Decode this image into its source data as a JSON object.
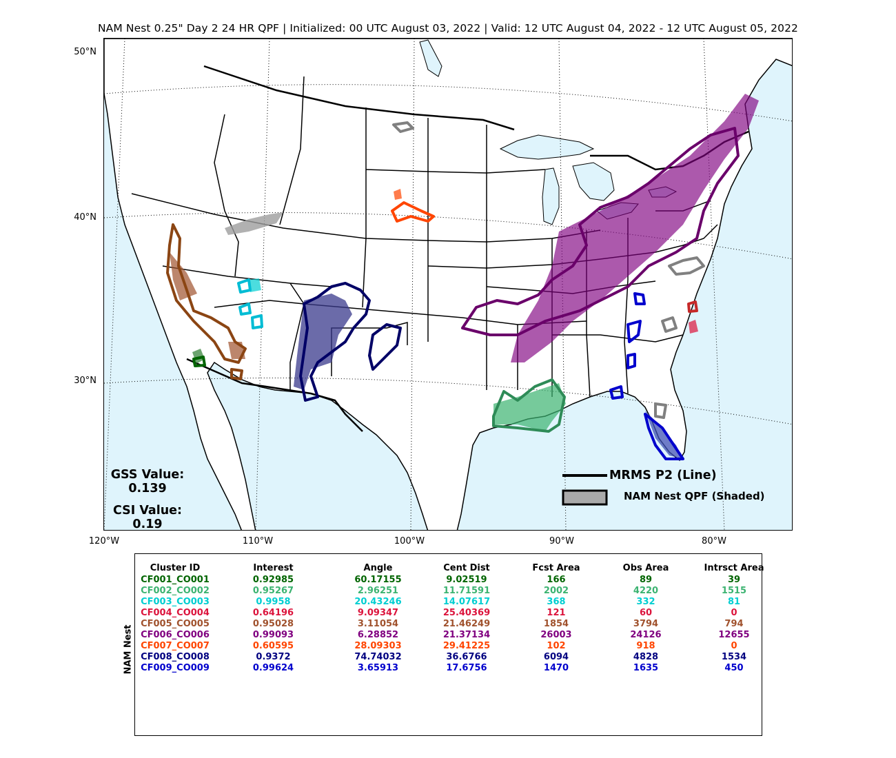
{
  "title": "NAM Nest 0.25\" Day 2 24 HR QPF | Initialized: 00 UTC August 03, 2022 | Valid: 12 UTC August 04, 2022 - 12 UTC August 05, 2022",
  "map": {
    "lat_labels": [
      "50°N",
      "40°N",
      "30°N"
    ],
    "lon_labels": [
      "120°W",
      "110°W",
      "100°W",
      "90°W",
      "80°W"
    ],
    "gss": {
      "label": "GSS Value:",
      "value": "0.139"
    },
    "csi": {
      "label": "CSI Value:",
      "value": "0.19"
    },
    "legend": {
      "line_label": "MRMS P2 (Line)",
      "shaded_label": "NAM Nest QPF (Shaded)"
    },
    "colors": {
      "ocean": "#dff4fc",
      "land": "#ffffff",
      "unmatched": "#808080"
    }
  },
  "table": {
    "row_label": "NAM Nest",
    "headers": [
      "Cluster ID",
      "Interest",
      "Angle",
      "Cent Dist",
      "Fcst Area",
      "Obs Area",
      "Intrsct Area"
    ],
    "rows": [
      {
        "color": "#006400",
        "cells": [
          "CF001_CO001",
          "0.92985",
          "60.17155",
          "9.02519",
          "166",
          "89",
          "39"
        ]
      },
      {
        "color": "#3cb371",
        "cells": [
          "CF002_CO002",
          "0.95267",
          "2.96251",
          "11.71591",
          "2002",
          "4220",
          "1515"
        ]
      },
      {
        "color": "#00ced1",
        "cells": [
          "CF003_CO003",
          "0.9958",
          "20.43246",
          "14.07617",
          "368",
          "332",
          "81"
        ]
      },
      {
        "color": "#dc143c",
        "cells": [
          "CF004_CO004",
          "0.64196",
          "9.09347",
          "25.40369",
          "121",
          "60",
          "0"
        ]
      },
      {
        "color": "#a0522d",
        "cells": [
          "CF005_CO005",
          "0.95028",
          "3.11054",
          "21.46249",
          "1854",
          "3794",
          "794"
        ]
      },
      {
        "color": "#800080",
        "cells": [
          "CF006_CO006",
          "0.99093",
          "6.28852",
          "21.37134",
          "26003",
          "24126",
          "12655"
        ]
      },
      {
        "color": "#ff4500",
        "cells": [
          "CF007_CO007",
          "0.60595",
          "28.09303",
          "29.41225",
          "102",
          "918",
          "0"
        ]
      },
      {
        "color": "#000080",
        "cells": [
          "CF008_CO008",
          "0.9372",
          "74.74032",
          "36.6766",
          "6094",
          "4828",
          "1534"
        ]
      },
      {
        "color": "#0000cd",
        "cells": [
          "CF009_CO009",
          "0.99624",
          "3.65913",
          "17.6756",
          "1470",
          "1635",
          "450"
        ]
      }
    ]
  }
}
